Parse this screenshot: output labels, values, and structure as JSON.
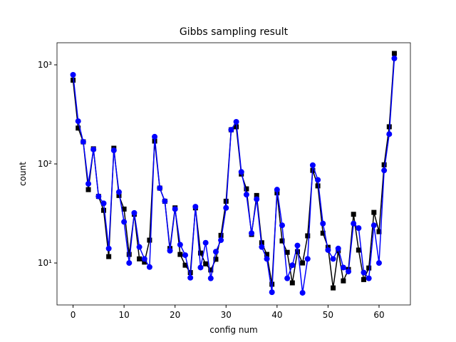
{
  "chart_data": {
    "type": "line",
    "title": "Gibbs sampling result",
    "x_label": "config num",
    "y_label": "count",
    "x": [
      0,
      1,
      2,
      3,
      4,
      5,
      6,
      7,
      8,
      9,
      10,
      11,
      12,
      13,
      14,
      15,
      16,
      17,
      18,
      19,
      20,
      21,
      22,
      23,
      24,
      25,
      26,
      27,
      28,
      29,
      30,
      31,
      32,
      33,
      34,
      35,
      36,
      37,
      38,
      39,
      40,
      41,
      42,
      43,
      44,
      45,
      46,
      47,
      48,
      49,
      50,
      51,
      52,
      53,
      54,
      55,
      56,
      57,
      58,
      59,
      60,
      61,
      62,
      63
    ],
    "series": [
      {
        "color": "#000000",
        "marker": "square",
        "values": [
          700,
          230,
          167,
          55,
          142,
          47,
          34,
          11.6,
          144,
          48,
          35,
          12.2,
          31,
          11,
          10.2,
          17,
          170,
          57,
          42,
          14,
          36,
          12.2,
          9.5,
          8,
          36,
          12.6,
          9.8,
          8.5,
          10.9,
          19,
          42,
          221,
          237,
          79,
          56,
          19.4,
          48,
          16,
          12.2,
          6.1,
          51,
          16.7,
          12.8,
          6.3,
          13,
          10,
          18.8,
          86,
          60,
          20,
          14.4,
          5.6,
          13.3,
          6.6,
          8.6,
          31,
          13.5,
          6.8,
          8.9,
          32.4,
          20.7,
          98,
          237,
          1303
        ]
      },
      {
        "color": "#0000ff",
        "marker": "circle",
        "values": [
          793,
          270,
          167,
          63,
          140,
          47,
          40,
          14,
          137,
          52,
          26,
          10,
          32,
          14.5,
          11,
          9.1,
          188,
          57,
          42,
          13.3,
          35,
          15.3,
          12,
          7.1,
          37,
          9,
          16,
          7,
          13,
          17,
          36,
          221,
          266,
          83,
          49,
          20,
          44,
          14.5,
          11,
          5.07,
          55,
          24,
          7,
          9.5,
          15,
          5,
          11,
          97,
          69,
          25,
          13.5,
          11,
          14,
          9,
          8.2,
          25,
          22.5,
          8,
          7,
          24,
          10,
          86,
          200,
          1161
        ]
      }
    ],
    "xlim": [
      -3.15,
      66.15
    ],
    "xticks": [
      0,
      10,
      20,
      30,
      40,
      50,
      60
    ],
    "ylim": [
      3.77,
      1671
    ],
    "yscale": "log",
    "yticks": [
      {
        "value": 10,
        "label": "10¹"
      },
      {
        "value": 100,
        "label": "10²"
      },
      {
        "value": 1000,
        "label": "10³"
      }
    ],
    "grid": false
  }
}
